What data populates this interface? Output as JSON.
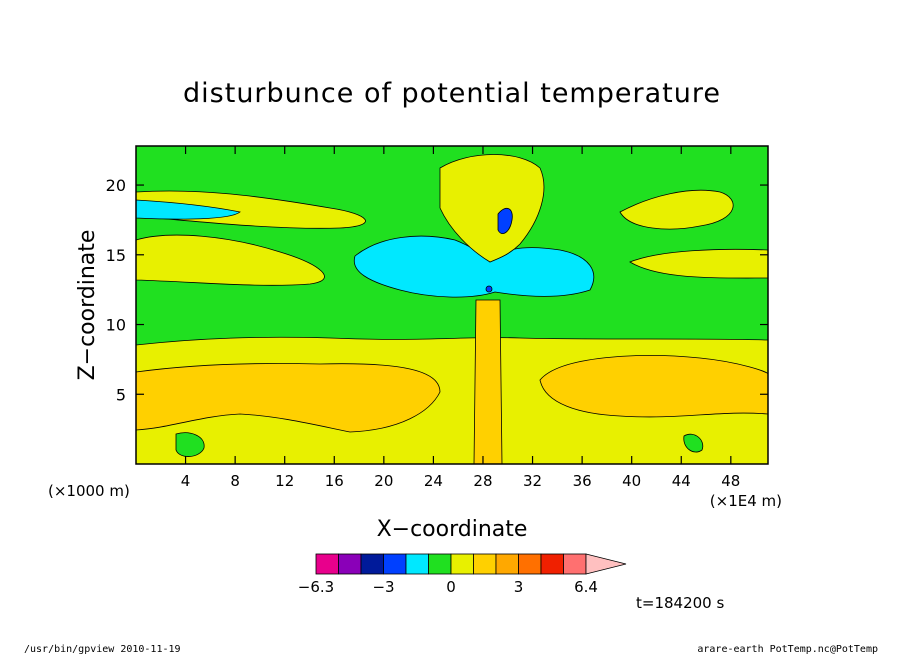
{
  "chart_data": {
    "type": "heatmap",
    "title": "disturbunce of potential temperature",
    "xlabel": "X−coordinate",
    "ylabel": "Z−coordinate",
    "x_unit": "(×1E4 m)",
    "y_unit": "(×1000 m)",
    "xlim": [
      0,
      51
    ],
    "ylim": [
      0,
      22.8
    ],
    "x_ticks": [
      "4",
      "8",
      "12",
      "16",
      "20",
      "24",
      "28",
      "32",
      "36",
      "40",
      "44",
      "48"
    ],
    "y_ticks": [
      "5",
      "10",
      "15",
      "20"
    ],
    "colorbar": {
      "colors": [
        "#e8008c",
        "#8a00b8",
        "#001a9a",
        "#0040ff",
        "#00e8ff",
        "#20e020",
        "#e8f000",
        "#ffd000",
        "#ffa800",
        "#ff7000",
        "#f02000",
        "#ff7070",
        "#ffc0c0"
      ],
      "tick_labels": [
        "−6.3",
        "−3",
        "0",
        "3",
        "6.4"
      ],
      "arrow": "right"
    },
    "time_label": "t=184200 s",
    "background_level": "0 (green)"
  },
  "footer": {
    "left": "/usr/bin/gpview   2010-11-19",
    "right": "arare-earth_PotTemp.nc@PotTemp"
  }
}
